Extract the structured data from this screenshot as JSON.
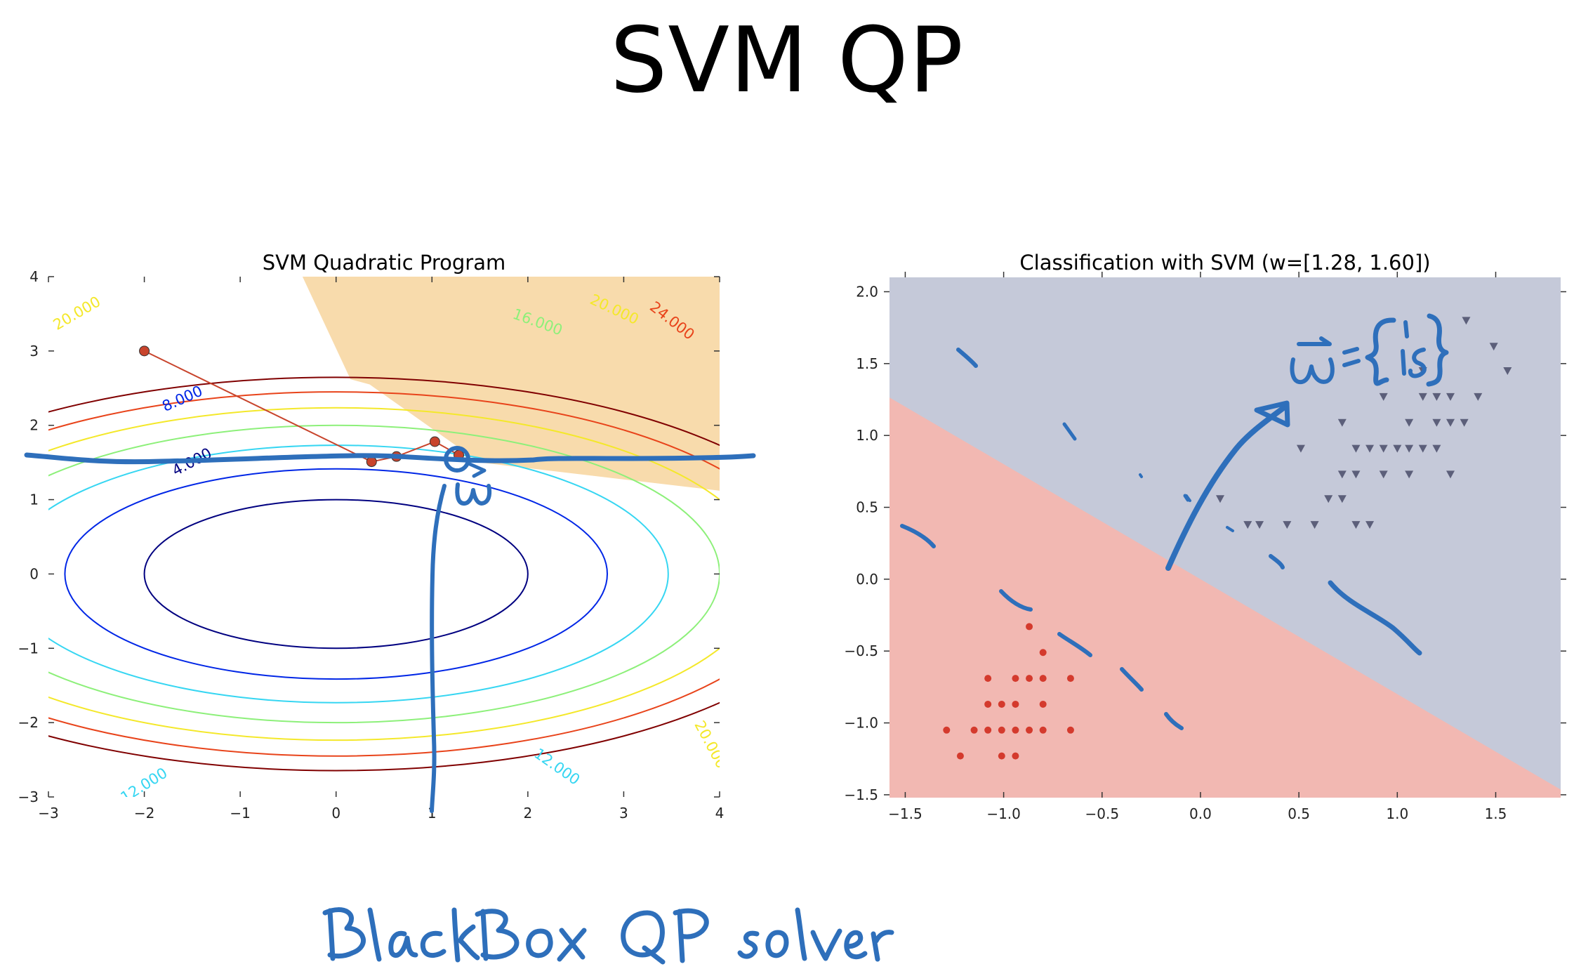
{
  "slide": {
    "title": "SVM QP",
    "handwritten_note": "Black Box QP solver",
    "handwritten_w_label": "w",
    "handwritten_w_value": "w = [1,1.5]"
  },
  "colors": {
    "feasible_region": "#f8dbac",
    "optimizer_path": "#c8442c",
    "class_neg_region": "#f2b8b2",
    "class_pos_region": "#c5c9d9",
    "class_neg_points": "#d43a2d",
    "class_pos_points": "#5c5f7a",
    "ink": "#2e6fbb"
  },
  "chart_data": [
    {
      "type": "contour",
      "title": "SVM Quadratic Program",
      "xlim": [
        -3,
        4
      ],
      "ylim": [
        -3,
        4
      ],
      "xticks": [
        "−3",
        "−2",
        "−1",
        "0",
        "1",
        "2",
        "3",
        "4"
      ],
      "yticks": [
        "−3",
        "−2",
        "−1",
        "0",
        "1",
        "2",
        "3",
        "4"
      ],
      "contour_levels": [
        {
          "level": 4,
          "label": "4.000",
          "color": "#000080"
        },
        {
          "level": 8,
          "label": "8.000",
          "color": "#0026e6"
        },
        {
          "level": 12,
          "label": "12.000",
          "color": "#36d6f2"
        },
        {
          "level": 16,
          "label": "16.000",
          "color": "#8df07a"
        },
        {
          "level": 20,
          "label": "20.000",
          "color": "#f4e82a"
        },
        {
          "level": 24,
          "label": "24.000",
          "color": "#e8431a"
        },
        {
          "level": 28,
          "label": "",
          "color": "#800000"
        }
      ],
      "contour_label_positions": [
        {
          "label": "4.000",
          "x": -1.5,
          "y": 1.5,
          "angle": 28
        },
        {
          "label": "8.000",
          "x": -1.6,
          "y": 2.35,
          "angle": 24
        },
        {
          "label": "12.000",
          "x": -2.0,
          "y": -2.85,
          "angle": 32
        },
        {
          "label": "12.000",
          "x": 2.3,
          "y": -2.6,
          "angle": -35
        },
        {
          "label": "16.000",
          "x": 2.1,
          "y": 3.38,
          "angle": -20
        },
        {
          "label": "20.000",
          "x": -2.7,
          "y": 3.5,
          "angle": 30
        },
        {
          "label": "20.000",
          "x": 2.9,
          "y": 3.55,
          "angle": -25
        },
        {
          "label": "20.000",
          "x": 3.9,
          "y": -2.3,
          "angle": -62
        },
        {
          "label": "24.000",
          "x": 3.5,
          "y": 3.4,
          "angle": -38
        }
      ],
      "optimizer_path": {
        "x": [
          -2.0,
          0.37,
          0.63,
          1.03,
          1.28
        ],
        "y": [
          3.0,
          1.51,
          1.58,
          1.78,
          1.6
        ]
      }
    },
    {
      "type": "scatter",
      "title": "Classification with SVM (w=[1.28, 1.60])",
      "xlim": [
        -1.58,
        1.83
      ],
      "ylim": [
        -1.52,
        2.1
      ],
      "xticks": [
        "−1.5",
        "−1.0",
        "−0.5",
        "0.0",
        "0.5",
        "1.0",
        "1.5"
      ],
      "yticks": [
        "−1.5",
        "−1.0",
        "−0.5",
        "0.0",
        "0.5",
        "1.0",
        "1.5",
        "2.0"
      ],
      "w": [
        1.28,
        1.6
      ],
      "series": [
        {
          "marker": "circle",
          "x": [
            -0.87,
            -0.8,
            -1.08,
            -0.94,
            -0.87,
            -0.8,
            -0.66,
            -1.08,
            -1.01,
            -0.94,
            -0.8,
            -1.29,
            -1.15,
            -1.08,
            -1.01,
            -0.94,
            -0.87,
            -0.8,
            -0.66,
            -1.22,
            -1.01,
            -0.94
          ],
          "y": [
            -0.33,
            -0.51,
            -0.69,
            -0.69,
            -0.69,
            -0.69,
            -0.69,
            -0.87,
            -0.87,
            -0.87,
            -0.87,
            -1.05,
            -1.05,
            -1.05,
            -1.05,
            -1.05,
            -1.05,
            -1.05,
            -1.05,
            -1.23,
            -1.23,
            -1.23
          ]
        },
        {
          "marker": "triangle",
          "x": [
            1.35,
            1.49,
            1.56,
            1.13,
            0.93,
            1.2,
            1.27,
            1.13,
            1.41,
            0.72,
            1.06,
            1.2,
            1.27,
            1.34,
            0.51,
            0.79,
            0.86,
            0.93,
            1.0,
            1.06,
            1.13,
            1.2,
            0.72,
            0.79,
            0.93,
            1.06,
            1.27,
            0.65,
            0.72,
            0.1,
            0.3,
            0.44,
            0.58,
            0.79,
            0.86,
            0.24
          ],
          "y": [
            1.8,
            1.62,
            1.45,
            1.45,
            1.27,
            1.27,
            1.27,
            1.27,
            1.27,
            1.09,
            1.09,
            1.09,
            1.09,
            1.09,
            0.91,
            0.91,
            0.91,
            0.91,
            0.91,
            0.91,
            0.91,
            0.91,
            0.73,
            0.73,
            0.73,
            0.73,
            0.73,
            0.56,
            0.56,
            0.56,
            0.38,
            0.38,
            0.38,
            0.38,
            0.38,
            0.38
          ]
        }
      ]
    }
  ]
}
